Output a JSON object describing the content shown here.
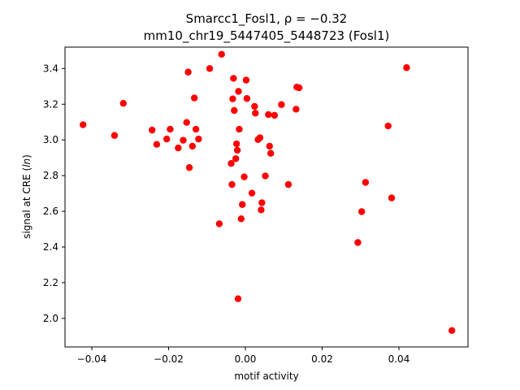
{
  "chart_data": {
    "type": "scatter",
    "title_line1": "Smarcc1_Fosl1, ρ = −0.32",
    "title_line2": "mm10_chr19_5447405_5448723 (Fosl1)",
    "xlabel": "motif activity",
    "ylabel_prefix": "signal at CRE (",
    "ylabel_italic": "ln",
    "ylabel_suffix": ")",
    "xlim": [
      -0.047,
      0.058
    ],
    "ylim": [
      1.84,
      3.52
    ],
    "xticks": [
      {
        "value": -0.04,
        "label": "−0.04"
      },
      {
        "value": -0.02,
        "label": "−0.02"
      },
      {
        "value": 0.0,
        "label": "0.00"
      },
      {
        "value": 0.02,
        "label": "0.02"
      },
      {
        "value": 0.04,
        "label": "0.04"
      }
    ],
    "yticks": [
      {
        "value": 2.0,
        "label": "2.0"
      },
      {
        "value": 2.2,
        "label": "2.2"
      },
      {
        "value": 2.4,
        "label": "2.4"
      },
      {
        "value": 2.6,
        "label": "2.6"
      },
      {
        "value": 2.8,
        "label": "2.8"
      },
      {
        "value": 3.0,
        "label": "3.0"
      },
      {
        "value": 3.2,
        "label": "3.2"
      },
      {
        "value": 3.4,
        "label": "3.4"
      }
    ],
    "grid": false,
    "marker_color": "#ff0000",
    "points": [
      {
        "x": -0.0423,
        "y": 3.085
      },
      {
        "x": -0.0341,
        "y": 3.025
      },
      {
        "x": -0.0318,
        "y": 3.205
      },
      {
        "x": -0.0243,
        "y": 3.055
      },
      {
        "x": -0.0231,
        "y": 2.975
      },
      {
        "x": -0.0205,
        "y": 3.005
      },
      {
        "x": -0.0196,
        "y": 3.06
      },
      {
        "x": -0.0175,
        "y": 2.955
      },
      {
        "x": -0.0162,
        "y": 2.998
      },
      {
        "x": -0.0153,
        "y": 3.098
      },
      {
        "x": -0.0149,
        "y": 3.38
      },
      {
        "x": -0.0146,
        "y": 2.845
      },
      {
        "x": -0.0138,
        "y": 2.965
      },
      {
        "x": -0.0133,
        "y": 3.235
      },
      {
        "x": -0.0129,
        "y": 3.06
      },
      {
        "x": -0.0122,
        "y": 3.005
      },
      {
        "x": -0.0093,
        "y": 3.4
      },
      {
        "x": -0.0068,
        "y": 2.53
      },
      {
        "x": -0.0062,
        "y": 3.48
      },
      {
        "x": -0.0037,
        "y": 2.868
      },
      {
        "x": -0.0035,
        "y": 2.75
      },
      {
        "x": -0.0033,
        "y": 3.23
      },
      {
        "x": -0.0031,
        "y": 3.345
      },
      {
        "x": -0.0029,
        "y": 3.165
      },
      {
        "x": -0.0025,
        "y": 2.895
      },
      {
        "x": -0.0023,
        "y": 2.978
      },
      {
        "x": -0.0021,
        "y": 2.942
      },
      {
        "x": -0.0019,
        "y": 2.11
      },
      {
        "x": -0.0018,
        "y": 3.272
      },
      {
        "x": -0.0016,
        "y": 3.06
      },
      {
        "x": -0.0011,
        "y": 2.558
      },
      {
        "x": -0.0008,
        "y": 2.638
      },
      {
        "x": -0.0003,
        "y": 2.793
      },
      {
        "x": 0.0002,
        "y": 3.335
      },
      {
        "x": 0.0004,
        "y": 3.232
      },
      {
        "x": 0.0017,
        "y": 2.702
      },
      {
        "x": 0.0024,
        "y": 3.188
      },
      {
        "x": 0.0026,
        "y": 3.15
      },
      {
        "x": 0.0033,
        "y": 3.002
      },
      {
        "x": 0.0038,
        "y": 3.012
      },
      {
        "x": 0.0041,
        "y": 2.608
      },
      {
        "x": 0.0043,
        "y": 2.648
      },
      {
        "x": 0.0052,
        "y": 2.798
      },
      {
        "x": 0.006,
        "y": 3.142
      },
      {
        "x": 0.0063,
        "y": 2.965
      },
      {
        "x": 0.0066,
        "y": 2.925
      },
      {
        "x": 0.0076,
        "y": 3.138
      },
      {
        "x": 0.0094,
        "y": 3.198
      },
      {
        "x": 0.0112,
        "y": 2.75
      },
      {
        "x": 0.0132,
        "y": 3.172
      },
      {
        "x": 0.0134,
        "y": 3.296
      },
      {
        "x": 0.014,
        "y": 3.292
      },
      {
        "x": 0.0293,
        "y": 2.425
      },
      {
        "x": 0.0303,
        "y": 2.598
      },
      {
        "x": 0.0313,
        "y": 2.762
      },
      {
        "x": 0.0372,
        "y": 3.078
      },
      {
        "x": 0.0381,
        "y": 2.675
      },
      {
        "x": 0.042,
        "y": 3.405
      },
      {
        "x": 0.0538,
        "y": 1.932
      }
    ]
  }
}
